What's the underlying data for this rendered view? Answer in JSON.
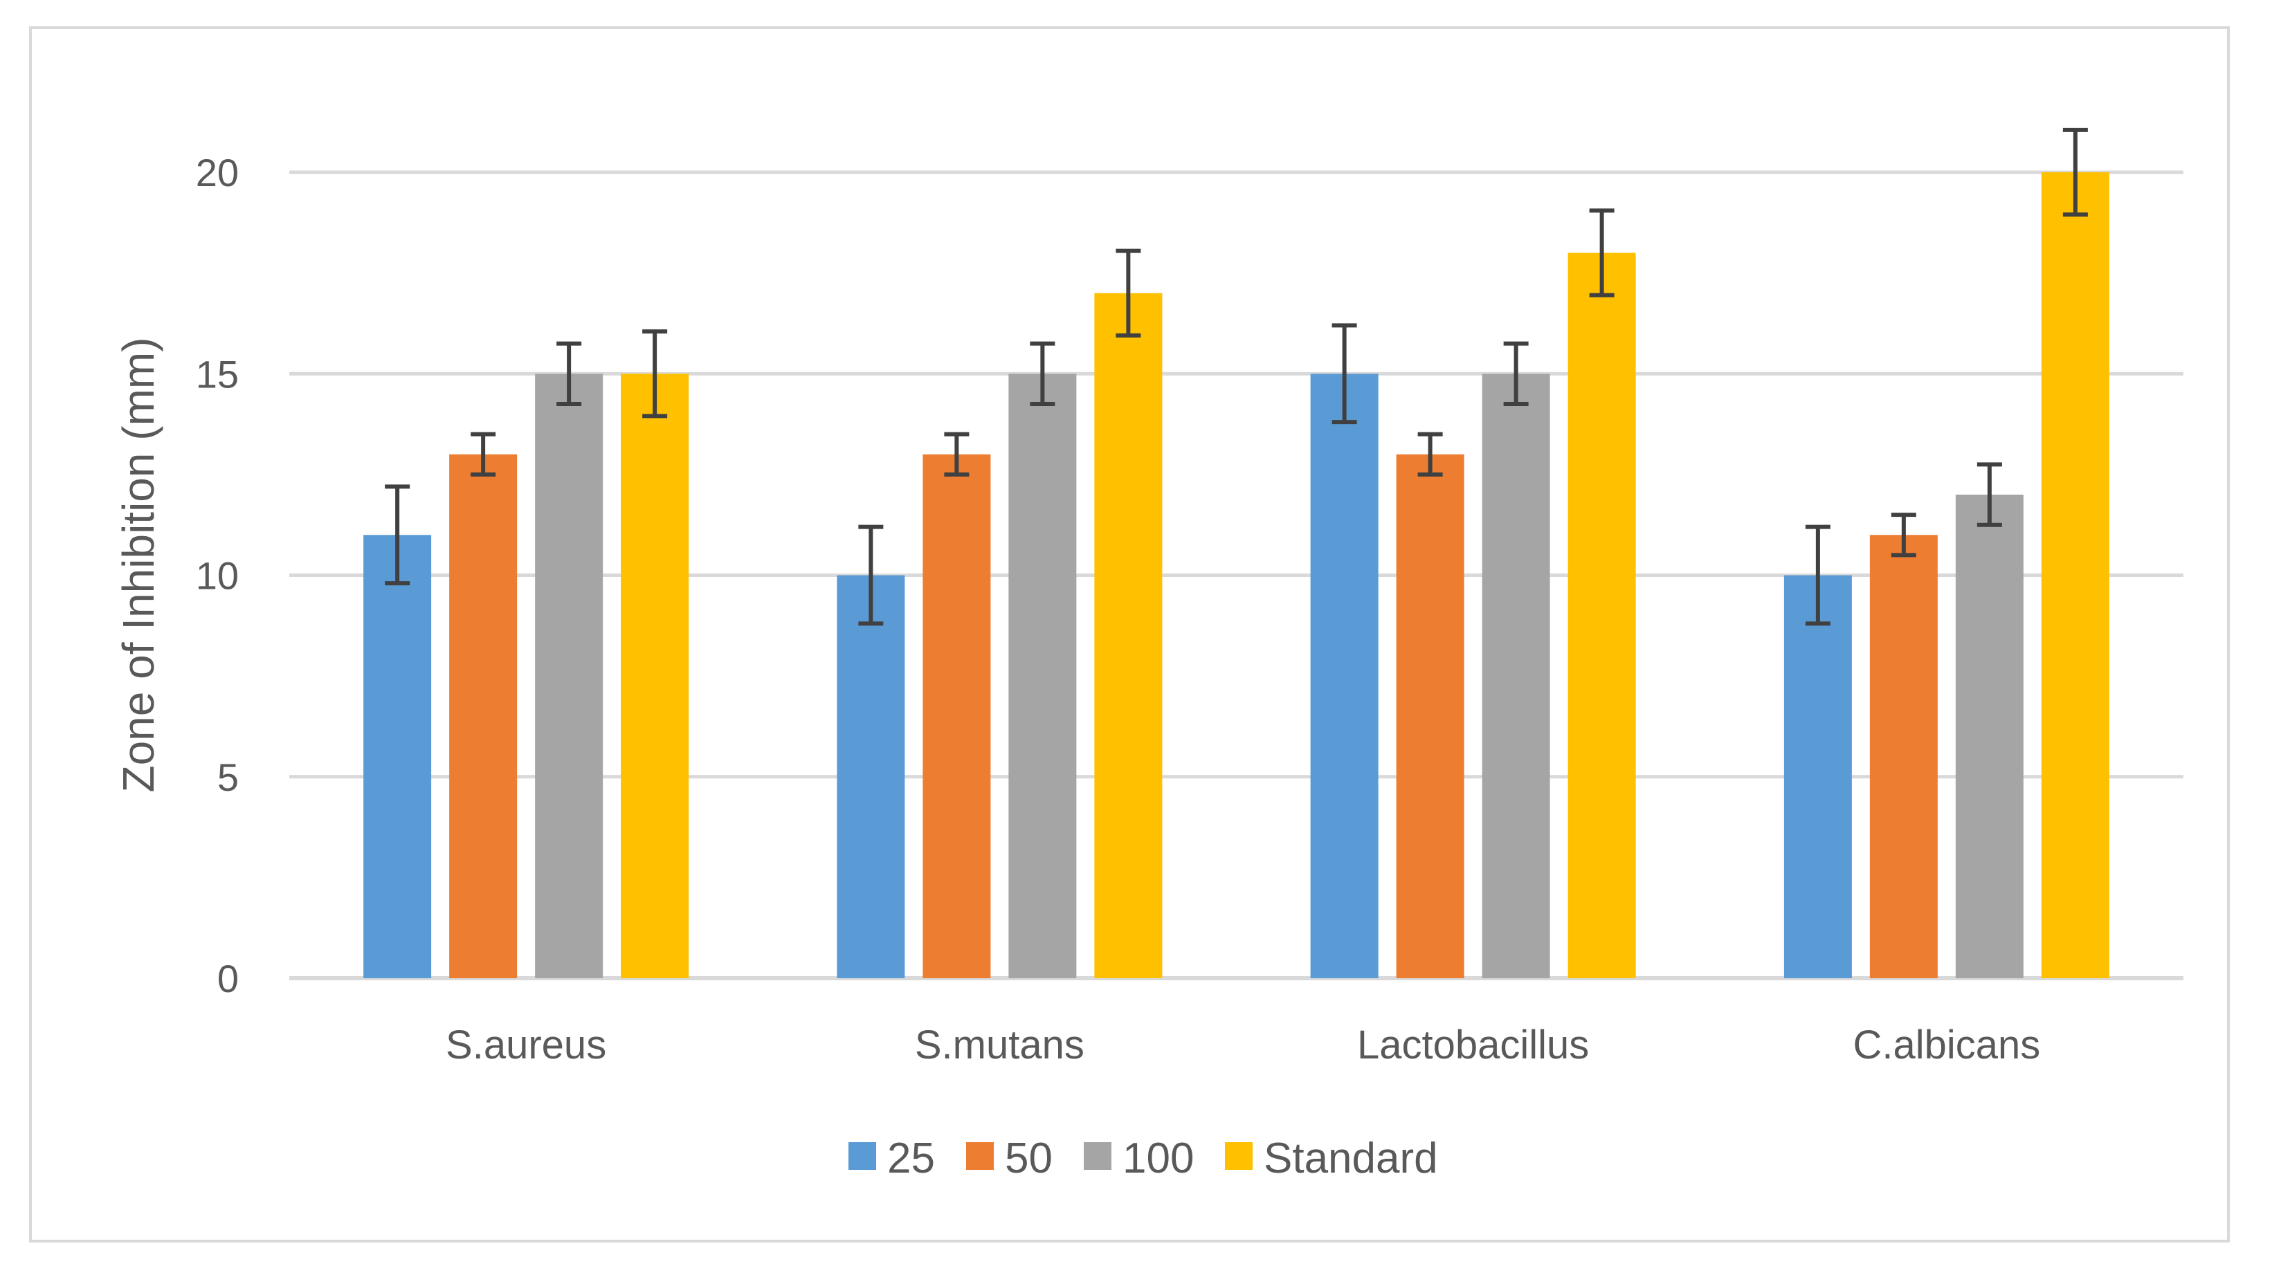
{
  "chart_data": {
    "type": "bar",
    "title": "",
    "xlabel": "",
    "ylabel": "Zone of Inhibition  (mm)",
    "ylim": [
      0,
      20
    ],
    "yticks": [
      0,
      5,
      10,
      15,
      20
    ],
    "grid": true,
    "legend_position": "bottom",
    "categories": [
      "S.aureus",
      "S.mutans",
      "Lactobacillus",
      "C.albicans"
    ],
    "series": [
      {
        "name": "25",
        "color": "#5b9bd5",
        "values": [
          11,
          10,
          15,
          10
        ],
        "errors": [
          1.2,
          1.2,
          1.2,
          1.2
        ]
      },
      {
        "name": "50",
        "color": "#ed7d31",
        "values": [
          13,
          13,
          13,
          11
        ],
        "errors": [
          0.5,
          0.5,
          0.5,
          0.5
        ]
      },
      {
        "name": "100",
        "color": "#a5a5a5",
        "values": [
          15,
          15,
          15,
          12
        ],
        "errors": [
          0.75,
          0.75,
          0.75,
          0.75
        ]
      },
      {
        "name": "Standard",
        "color": "#ffc000",
        "values": [
          15,
          17,
          18,
          20
        ],
        "errors": [
          1.05,
          1.05,
          1.05,
          1.05
        ]
      }
    ],
    "error_bar_color": "#404040",
    "grid_color": "#d9d9d9"
  }
}
